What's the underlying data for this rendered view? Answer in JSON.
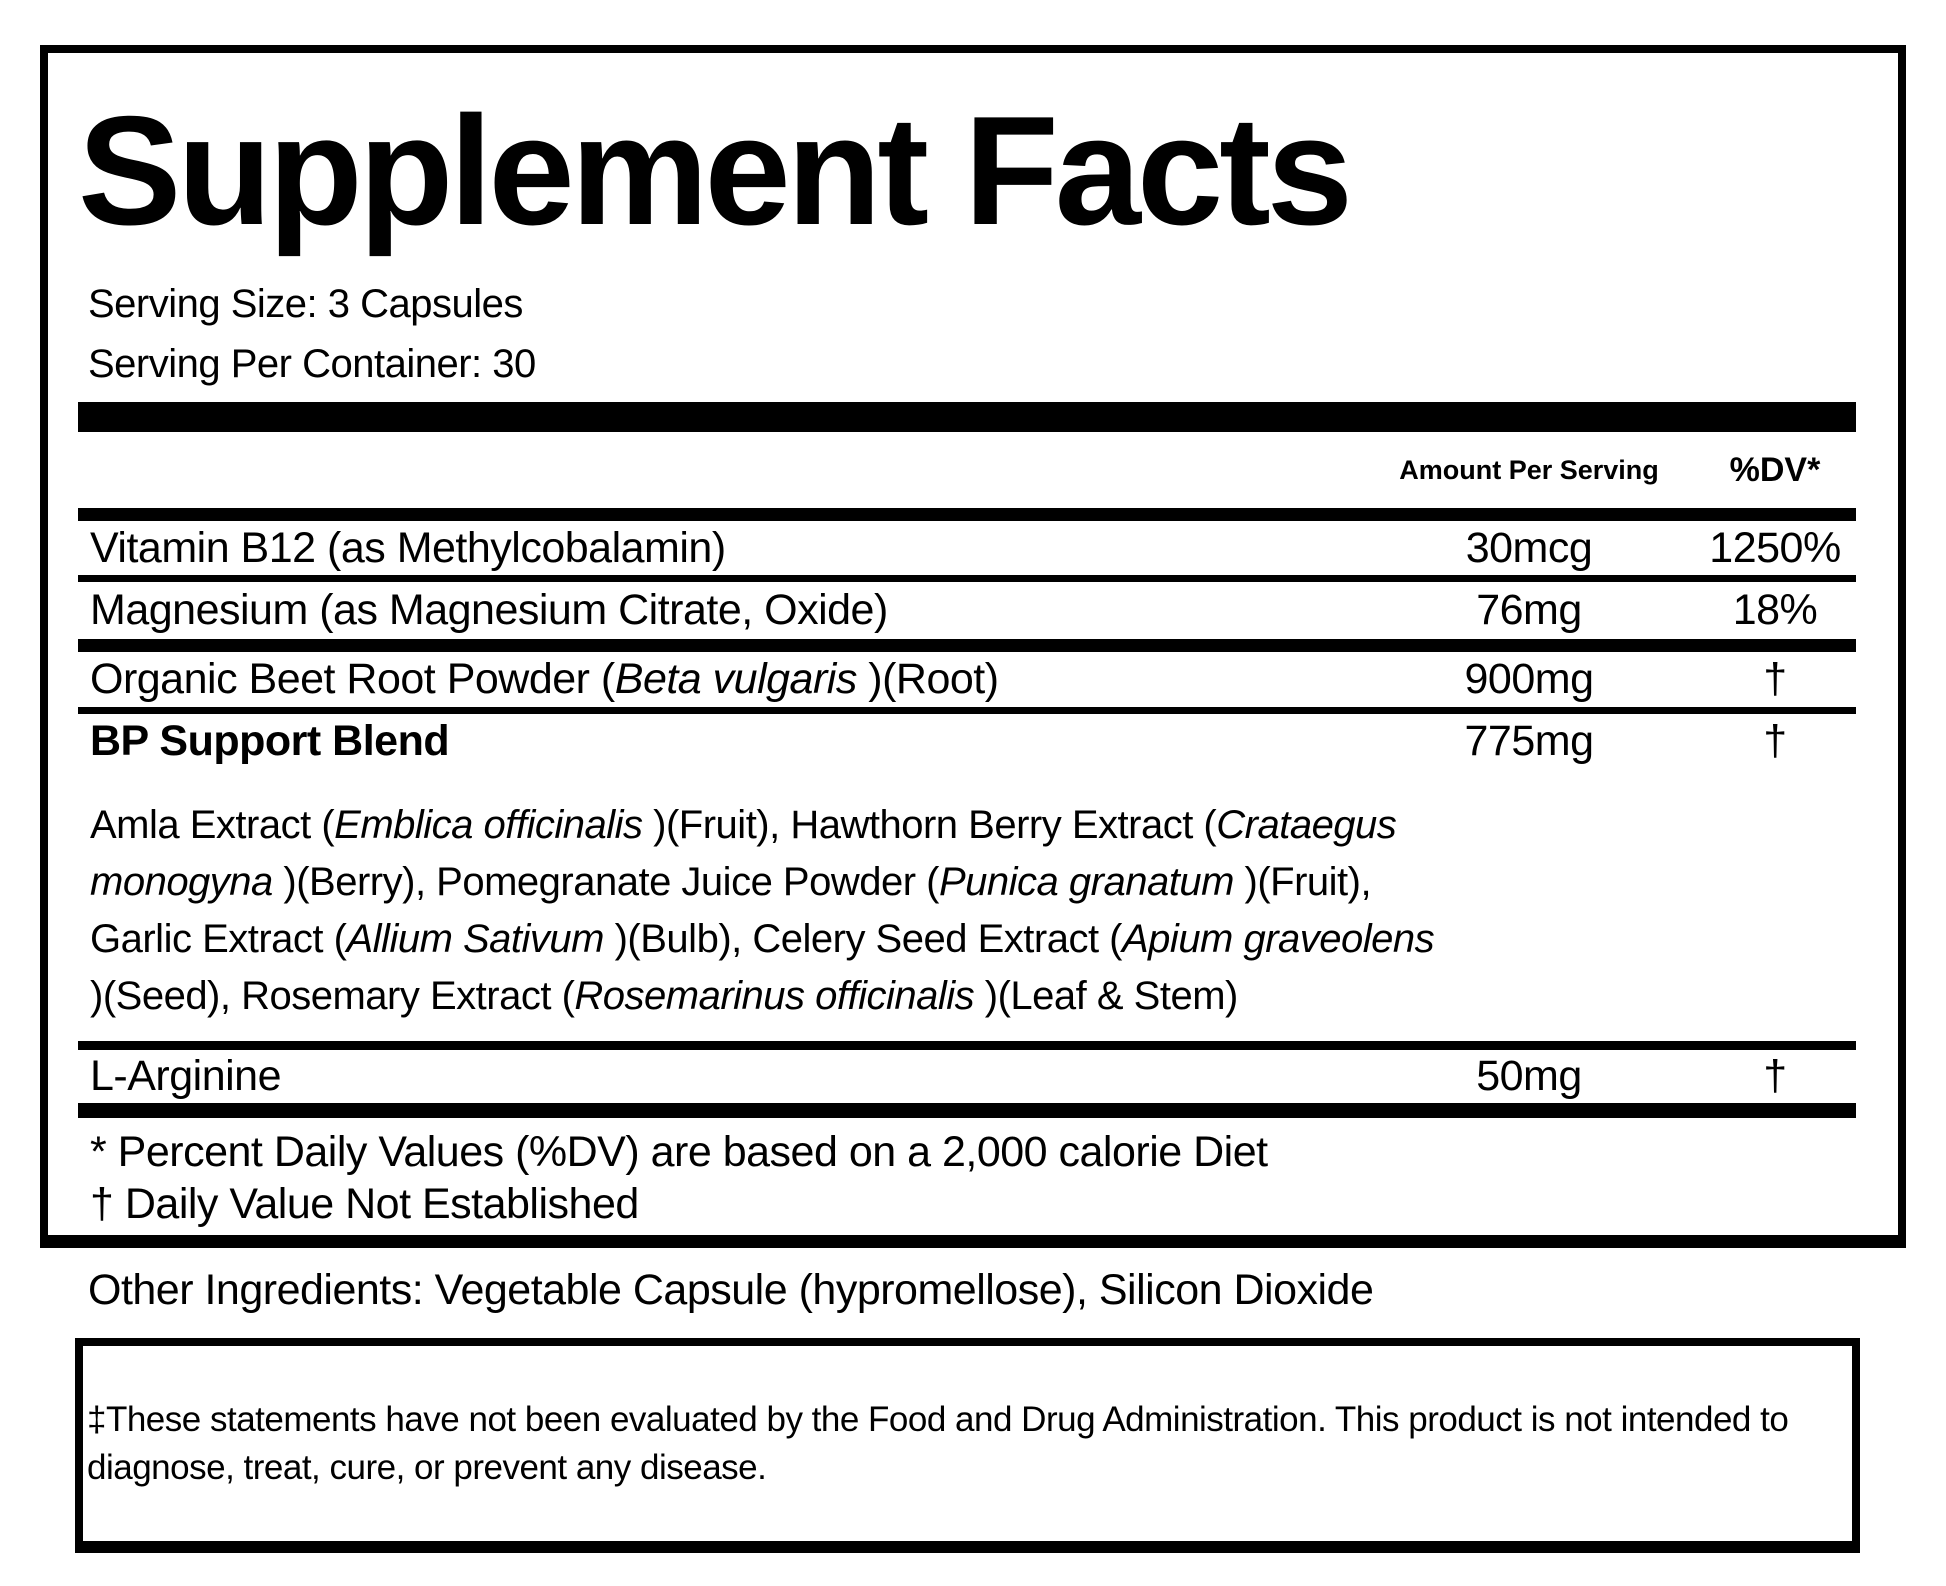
{
  "label": {
    "title": "Supplement Facts",
    "serving_size": "Serving Size: 3 Capsules",
    "servings_per_container": "Serving Per Container: 30",
    "header": {
      "amount": "Amount Per Serving",
      "dv": "%DV*"
    },
    "rows": [
      {
        "name": [
          {
            "t": "Vitamin B12 (as Methylcobalamin)"
          }
        ],
        "amount": "30mcg",
        "dv": "1250%"
      },
      {
        "name": [
          {
            "t": "Magnesium (as Magnesium Citrate, Oxide)"
          }
        ],
        "amount": "76mg",
        "dv": "18%"
      },
      {
        "name": [
          {
            "t": "Organic Beet Root Powder ("
          },
          {
            "t": "Beta vulgaris",
            "i": true
          },
          {
            "t": " )(Root)"
          }
        ],
        "amount": "900mg",
        "dv": "†"
      },
      {
        "name": [
          {
            "t": "BP Support Blend"
          }
        ],
        "amount": "775mg",
        "dv": "†"
      },
      {
        "name": [
          {
            "t": "L-Arginine"
          }
        ],
        "amount": "50mg",
        "dv": "†"
      }
    ],
    "blend_description": [
      [
        {
          "t": "Amla Extract ("
        },
        {
          "t": "Emblica officinalis",
          "i": true
        },
        {
          "t": " )(Fruit), Hawthorn Berry Extract ("
        },
        {
          "t": "Crataegus",
          "i": true
        }
      ],
      [
        {
          "t": "monogyna",
          "i": true
        },
        {
          "t": " )(Berry), Pomegranate Juice Powder ("
        },
        {
          "t": "Punica granatum",
          "i": true
        },
        {
          "t": " )(Fruit),"
        }
      ],
      [
        {
          "t": "Garlic Extract ("
        },
        {
          "t": "Allium Sativum",
          "i": true
        },
        {
          "t": " )(Bulb), Celery Seed Extract ("
        },
        {
          "t": "Apium graveolens",
          "i": true
        }
      ],
      [
        {
          "t": ")(Seed), Rosemary Extract ("
        },
        {
          "t": "Rosemarinus officinalis",
          "i": true
        },
        {
          "t": " )(Leaf & Stem)"
        }
      ]
    ],
    "footnotes": [
      "* Percent Daily Values (%DV) are based on a 2,000 calorie Diet",
      "† Daily Value Not Established"
    ]
  },
  "other_ingredients": "Other Ingredients: Vegetable Capsule (hypromellose), Silicon Dioxide",
  "disclaimer": "‡These statements have not been evaluated by the Food and Drug Administration. This product is not intended to diagnose, treat, cure, or prevent any disease.",
  "colors": {
    "ink": "#000000",
    "paper": "#ffffff"
  }
}
